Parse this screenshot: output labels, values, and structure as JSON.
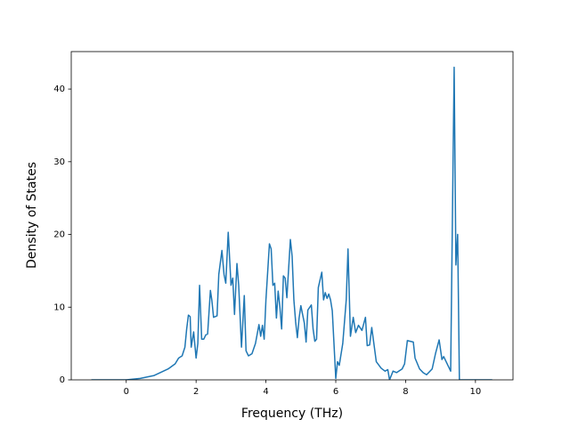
{
  "chart_data": {
    "type": "line",
    "x_label": "Frequency (THz)",
    "y_label": "Density of States",
    "xlim": [
      -1.575,
      11.075
    ],
    "ylim": [
      0,
      45.15
    ],
    "xticks": [
      0,
      2,
      4,
      6,
      8,
      10
    ],
    "yticks": [
      0,
      10,
      20,
      30,
      40
    ],
    "grid": false,
    "series": [
      {
        "color": "#1f77b4",
        "x": [
          -1,
          0,
          0.4,
          0.8,
          1.2,
          1.4,
          1.5,
          1.6,
          1.68,
          1.73,
          1.78,
          1.83,
          1.86,
          1.93,
          2.0,
          2.05,
          2.1,
          2.16,
          2.22,
          2.28,
          2.33,
          2.41,
          2.45,
          2.5,
          2.6,
          2.65,
          2.74,
          2.8,
          2.85,
          2.92,
          2.97,
          3.0,
          3.05,
          3.1,
          3.17,
          3.22,
          3.3,
          3.38,
          3.43,
          3.5,
          3.6,
          3.7,
          3.8,
          3.85,
          3.9,
          3.95,
          4.0,
          4.1,
          4.15,
          4.2,
          4.25,
          4.3,
          4.35,
          4.4,
          4.45,
          4.5,
          4.55,
          4.6,
          4.7,
          4.75,
          4.8,
          4.85,
          4.9,
          4.95,
          5.0,
          5.05,
          5.1,
          5.15,
          5.2,
          5.3,
          5.35,
          5.4,
          5.45,
          5.5,
          5.6,
          5.65,
          5.7,
          5.75,
          5.8,
          5.85,
          5.9,
          6.0,
          6.05,
          6.1,
          6.2,
          6.3,
          6.35,
          6.42,
          6.5,
          6.57,
          6.65,
          6.75,
          6.85,
          6.9,
          6.97,
          7.03,
          7.16,
          7.3,
          7.41,
          7.49,
          7.54,
          7.64,
          7.74,
          7.9,
          7.97,
          8.05,
          8.22,
          8.27,
          8.4,
          8.5,
          8.6,
          8.76,
          8.86,
          8.96,
          9.04,
          9.09,
          9.29,
          9.39,
          9.44,
          9.49,
          9.54,
          10.48
        ],
        "values": [
          0,
          0,
          0.2,
          0.6,
          1.5,
          2.2,
          3.0,
          3.3,
          4.5,
          7.0,
          8.9,
          8.7,
          4.5,
          6.6,
          3.0,
          5.0,
          13.0,
          5.6,
          5.6,
          6.2,
          6.3,
          12.3,
          11.0,
          8.6,
          8.8,
          14.5,
          17.8,
          14.5,
          13.3,
          20.3,
          15.8,
          13.0,
          14.0,
          9.0,
          16.0,
          13.0,
          4.5,
          11.6,
          4.0,
          3.3,
          3.6,
          5.0,
          7.6,
          6.0,
          7.5,
          5.6,
          11.0,
          18.7,
          18.0,
          13.0,
          13.3,
          8.5,
          12.2,
          10.0,
          7.0,
          14.3,
          14.0,
          11.3,
          19.3,
          17.0,
          11.0,
          8.0,
          5.8,
          8.5,
          10.2,
          9.0,
          7.8,
          5.2,
          9.6,
          10.3,
          7.0,
          5.3,
          5.6,
          12.7,
          14.8,
          11.0,
          12.0,
          11.2,
          11.8,
          11.0,
          9.5,
          0.2,
          2.5,
          2.0,
          5.0,
          11.0,
          18.0,
          6.0,
          8.6,
          6.5,
          7.5,
          6.8,
          8.6,
          4.7,
          4.8,
          7.2,
          2.5,
          1.6,
          1.2,
          1.4,
          0,
          1.2,
          1.0,
          1.5,
          2.2,
          5.4,
          5.2,
          3.0,
          1.5,
          1.0,
          0.7,
          1.5,
          3.7,
          5.5,
          2.8,
          3.2,
          1.2,
          43.0,
          15.8,
          20.0,
          0,
          0
        ]
      }
    ]
  }
}
